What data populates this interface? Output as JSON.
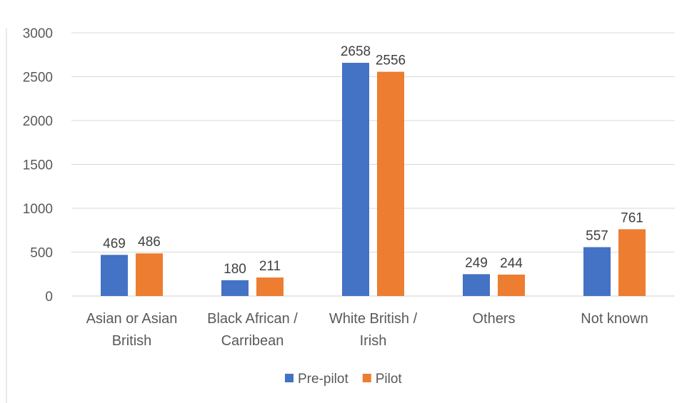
{
  "chart_data": {
    "type": "bar",
    "title": "",
    "xlabel": "",
    "ylabel": "",
    "categories": [
      [
        "Asian or Asian",
        "British"
      ],
      [
        "Black African /",
        "Carribean"
      ],
      [
        "White British /",
        "Irish"
      ],
      [
        "Others"
      ],
      [
        "Not known"
      ]
    ],
    "series": [
      {
        "name": "Pre-pilot",
        "color": "#4472C4",
        "values": [
          469,
          180,
          2658,
          249,
          557
        ]
      },
      {
        "name": "Pilot",
        "color": "#ED7D31",
        "values": [
          486,
          211,
          2556,
          244,
          761
        ]
      }
    ],
    "ylim": [
      0,
      3000
    ],
    "yticks": [
      0,
      500,
      1000,
      1500,
      2000,
      2500,
      3000
    ],
    "grid": true,
    "legend": "bottom",
    "data_labels": true
  }
}
